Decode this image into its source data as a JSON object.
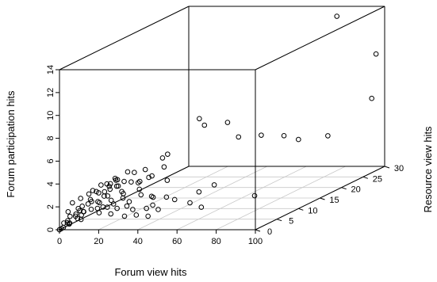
{
  "chart_data": {
    "type": "scatter",
    "title": "",
    "xlabel": "Forum view hits",
    "ylabel": "Resource view hits",
    "zlabel": "Forum participation hits",
    "xlim": [
      0,
      100
    ],
    "ylim": [
      0,
      30
    ],
    "zlim": [
      0,
      14
    ],
    "x_ticks": [
      "0",
      "20",
      "40",
      "60",
      "80",
      "100"
    ],
    "y_ticks": [
      "0",
      "5",
      "10",
      "15",
      "20",
      "25",
      "30"
    ],
    "z_ticks": [
      "0",
      "2",
      "4",
      "6",
      "8",
      "10",
      "12",
      "14"
    ],
    "grid": "floor",
    "points": [
      {
        "x": 45,
        "y": 12,
        "z": 7.5
      },
      {
        "x": 52,
        "y": 10,
        "z": 7.3
      },
      {
        "x": 55,
        "y": 14,
        "z": 6.8
      },
      {
        "x": 42,
        "y": 6,
        "z": 5.5
      },
      {
        "x": 38,
        "y": 7,
        "z": 4.2
      },
      {
        "x": 35,
        "y": 8,
        "z": 4.8
      },
      {
        "x": 48,
        "y": 3,
        "z": 2.3
      },
      {
        "x": 44,
        "y": 5,
        "z": 3.4
      },
      {
        "x": 30,
        "y": 5,
        "z": 3.3
      },
      {
        "x": 25,
        "y": 6,
        "z": 3.9
      },
      {
        "x": 20,
        "y": 4,
        "z": 3.6
      },
      {
        "x": 15,
        "y": 5,
        "z": 3.1
      },
      {
        "x": 75,
        "y": 18,
        "z": 4.9
      },
      {
        "x": 70,
        "y": 15,
        "z": 5.5
      },
      {
        "x": 65,
        "y": 12,
        "z": 5.9
      },
      {
        "x": 82,
        "y": 25,
        "z": 3.6
      },
      {
        "x": 78,
        "y": 20,
        "z": 4.2
      },
      {
        "x": 68,
        "y": 5,
        "z": 3.0
      },
      {
        "x": 82,
        "y": 8,
        "z": 1.5
      },
      {
        "x": 68,
        "y": 2,
        "z": 1.6
      },
      {
        "x": 80,
        "y": 28,
        "z": 13.5
      },
      {
        "x": 100,
        "y": 28,
        "z": 10.2
      },
      {
        "x": 100,
        "y": 27,
        "z": 6.5
      },
      {
        "x": 60,
        "y": 3,
        "z": 1.8
      },
      {
        "x": 58,
        "y": 6,
        "z": 2.2
      },
      {
        "x": 40,
        "y": 2,
        "z": 1.5
      },
      {
        "x": 35,
        "y": 3,
        "z": 2.5
      },
      {
        "x": 32,
        "y": 4,
        "z": 2.8
      },
      {
        "x": 28,
        "y": 2,
        "z": 2.4
      },
      {
        "x": 26,
        "y": 3,
        "z": 2.6
      },
      {
        "x": 22,
        "y": 2,
        "z": 2.2
      },
      {
        "x": 20,
        "y": 1,
        "z": 1.8
      },
      {
        "x": 18,
        "y": 3,
        "z": 2.4
      },
      {
        "x": 16,
        "y": 2,
        "z": 2.0
      },
      {
        "x": 14,
        "y": 1,
        "z": 1.6
      },
      {
        "x": 12,
        "y": 2,
        "z": 2.1
      },
      {
        "x": 10,
        "y": 1,
        "z": 1.4
      },
      {
        "x": 8,
        "y": 2,
        "z": 1.2
      },
      {
        "x": 6,
        "y": 1,
        "z": 1.0
      },
      {
        "x": 4,
        "y": 0,
        "z": 0.6
      },
      {
        "x": 2,
        "y": 0,
        "z": 0.2
      },
      {
        "x": 0,
        "y": 0,
        "z": 0.0
      },
      {
        "x": 1,
        "y": 0,
        "z": 0.1
      },
      {
        "x": 3,
        "y": 1,
        "z": 0.4
      },
      {
        "x": 5,
        "y": 0,
        "z": 0.5
      },
      {
        "x": 7,
        "y": 1,
        "z": 0.8
      },
      {
        "x": 9,
        "y": 1,
        "z": 1.1
      },
      {
        "x": 11,
        "y": 0,
        "z": 0.9
      },
      {
        "x": 13,
        "y": 3,
        "z": 1.9
      },
      {
        "x": 15,
        "y": 2,
        "z": 1.5
      },
      {
        "x": 17,
        "y": 4,
        "z": 2.8
      },
      {
        "x": 19,
        "y": 5,
        "z": 2.9
      },
      {
        "x": 21,
        "y": 3,
        "z": 1.7
      },
      {
        "x": 23,
        "y": 4,
        "z": 2.6
      },
      {
        "x": 24,
        "y": 1,
        "z": 1.2
      },
      {
        "x": 27,
        "y": 6,
        "z": 3.0
      },
      {
        "x": 29,
        "y": 3,
        "z": 1.9
      },
      {
        "x": 31,
        "y": 1,
        "z": 1.0
      },
      {
        "x": 33,
        "y": 2,
        "z": 1.4
      },
      {
        "x": 36,
        "y": 5,
        "z": 2.0
      },
      {
        "x": 10,
        "y": 4,
        "z": 2.6
      },
      {
        "x": 12,
        "y": 5,
        "z": 2.4
      },
      {
        "x": 8,
        "y": 3,
        "z": 1.7
      },
      {
        "x": 6,
        "y": 2,
        "z": 1.3
      },
      {
        "x": 14,
        "y": 4,
        "z": 2.2
      },
      {
        "x": 18,
        "y": 1,
        "z": 1.3
      },
      {
        "x": 20,
        "y": 2,
        "z": 1.6
      },
      {
        "x": 22,
        "y": 5,
        "z": 3.3
      },
      {
        "x": 25,
        "y": 2,
        "z": 1.5
      },
      {
        "x": 30,
        "y": 2,
        "z": 1.7
      },
      {
        "x": 34,
        "y": 6,
        "z": 3.6
      },
      {
        "x": 37,
        "y": 1,
        "z": 1.1
      },
      {
        "x": 39,
        "y": 4,
        "z": 2.1
      },
      {
        "x": 41,
        "y": 3,
        "z": 1.6
      },
      {
        "x": 43,
        "y": 1,
        "z": 1.0
      },
      {
        "x": 46,
        "y": 2,
        "z": 1.4
      },
      {
        "x": 50,
        "y": 4,
        "z": 1.9
      },
      {
        "x": 2,
        "y": 1,
        "z": 0.6
      },
      {
        "x": 4,
        "y": 2,
        "z": 1.0
      },
      {
        "x": 3,
        "y": 3,
        "z": 1.3
      },
      {
        "x": 5,
        "y": 3,
        "z": 1.5
      },
      {
        "x": 7,
        "y": 4,
        "z": 1.9
      },
      {
        "x": 9,
        "y": 5,
        "z": 2.3
      },
      {
        "x": 11,
        "y": 6,
        "z": 2.9
      },
      {
        "x": 13,
        "y": 7,
        "z": 3.2
      },
      {
        "x": 16,
        "y": 6,
        "z": 2.7
      },
      {
        "x": 1,
        "y": 2,
        "z": 0.8
      },
      {
        "x": 0,
        "y": 1,
        "z": 0.4
      },
      {
        "x": 0,
        "y": 2,
        "z": 1.2
      },
      {
        "x": 0,
        "y": 3,
        "z": 1.8
      },
      {
        "x": 2,
        "y": 4,
        "z": 2.0
      },
      {
        "x": 4,
        "y": 5,
        "z": 2.2
      },
      {
        "x": 6,
        "y": 5,
        "z": 2.5
      },
      {
        "x": 8,
        "y": 6,
        "z": 2.8
      },
      {
        "x": 10,
        "y": 7,
        "z": 2.5
      },
      {
        "x": 12,
        "y": 8,
        "z": 2.9
      },
      {
        "x": 15,
        "y": 9,
        "z": 3.4
      },
      {
        "x": 19,
        "y": 8,
        "z": 2.7
      },
      {
        "x": 24,
        "y": 9,
        "z": 3.6
      },
      {
        "x": 28,
        "y": 8,
        "z": 3.1
      }
    ]
  }
}
